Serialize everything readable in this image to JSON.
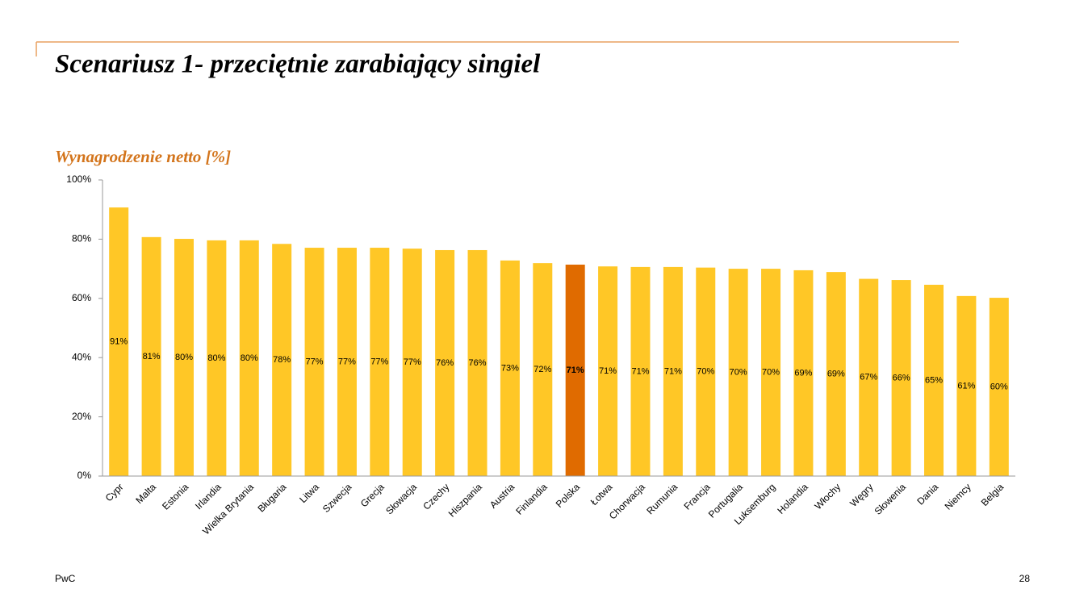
{
  "chart_data": {
    "type": "bar",
    "title": "Scenariusz 1-  przeciętnie zarabiający singiel",
    "subtitle": "Wynagrodzenie netto [%]",
    "footer": "PwC",
    "page_number": "28",
    "categories": [
      "Cypr",
      "Malta",
      "Estonia",
      "Irlandia",
      "Wielka Brytania",
      "Bługaria",
      "Litwa",
      "Szwecja",
      "Grecja",
      "Słowacja",
      "Czechy",
      "Hiszpania",
      "Austria",
      "Finlandia",
      "Polska",
      "Łotwa",
      "Chorwacja",
      "Rumunia",
      "Francja",
      "Portugalia",
      "Luksemburg",
      "Holandia",
      "Włochy",
      "Węgry",
      "Słowenia",
      "Dania",
      "Niemcy",
      "Belgia"
    ],
    "values": [
      90.7,
      80.7,
      80.1,
      79.6,
      79.6,
      78.4,
      77.1,
      77.1,
      77.1,
      76.8,
      76.3,
      76.3,
      72.8,
      71.9,
      71.4,
      70.8,
      70.6,
      70.6,
      70.4,
      70.0,
      70.0,
      69.5,
      68.9,
      66.6,
      66.2,
      64.6,
      60.8,
      60.2
    ],
    "value_labels": [
      "91%",
      "81%",
      "80%",
      "80%",
      "80%",
      "78%",
      "77%",
      "77%",
      "77%",
      "77%",
      "76%",
      "76%",
      "73%",
      "72%",
      "71%",
      "71%",
      "71%",
      "71%",
      "70%",
      "70%",
      "70%",
      "69%",
      "69%",
      "67%",
      "66%",
      "65%",
      "61%",
      "60%"
    ],
    "color": "#ffc726",
    "colors": [
      "#ffc726",
      "#ffc726",
      "#ffc726",
      "#ffc726",
      "#ffc726",
      "#ffc726",
      "#ffc726",
      "#ffc726",
      "#ffc726",
      "#ffc726",
      "#ffc726",
      "#ffc726",
      "#ffc726",
      "#ffc726",
      "#e06b00",
      "#ffc726",
      "#ffc726",
      "#ffc726",
      "#ffc726",
      "#ffc726",
      "#ffc726",
      "#ffc726",
      "#ffc726",
      "#ffc726",
      "#ffc726",
      "#ffc726",
      "#ffc726",
      "#ffc726"
    ],
    "ylim": [
      0,
      100
    ],
    "yticks": [
      {
        "value": 0,
        "label": "0%"
      },
      {
        "value": 20,
        "label": "20%"
      },
      {
        "value": 40,
        "label": "40%"
      },
      {
        "value": 60,
        "label": "60%"
      },
      {
        "value": 80,
        "label": "80%"
      },
      {
        "value": 100,
        "label": "100%"
      }
    ],
    "grid": false
  }
}
